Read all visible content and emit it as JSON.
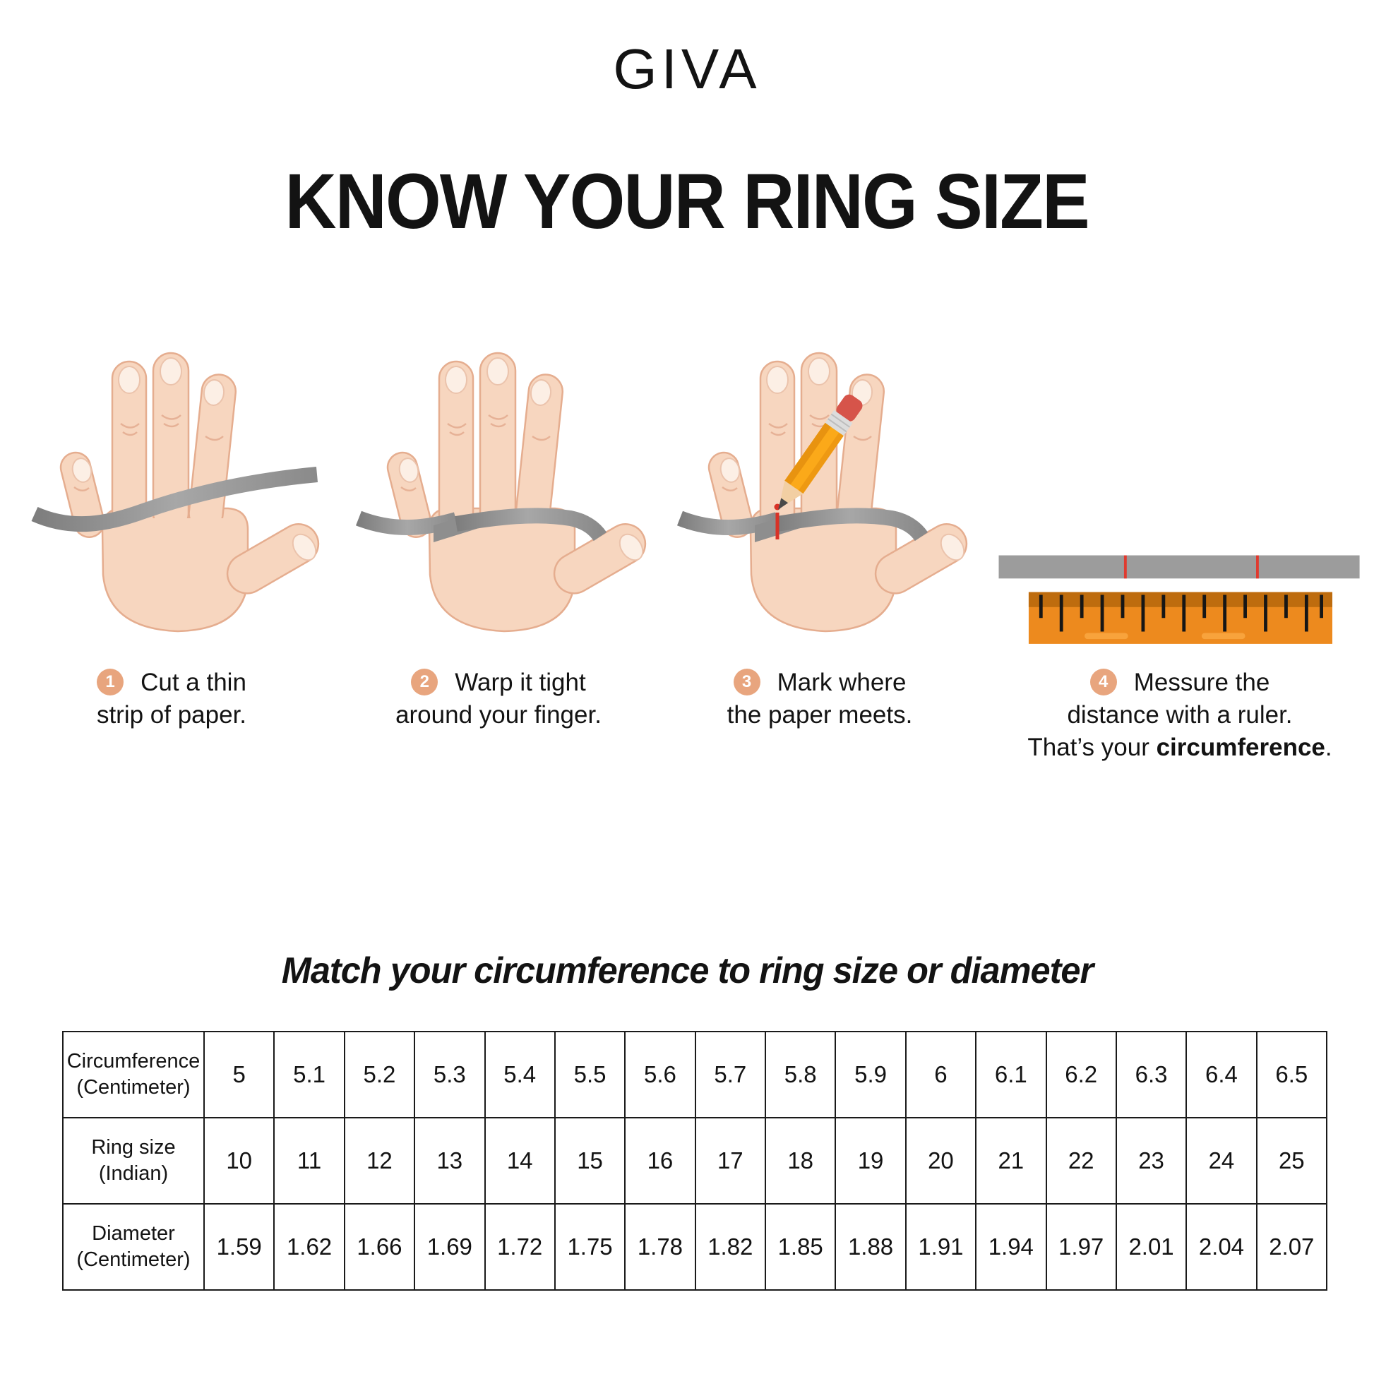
{
  "brand": {
    "logo_text": "GIVA"
  },
  "heading": {
    "title": "KNOW YOUR RING SIZE"
  },
  "steps": [
    {
      "number": "1",
      "line1": "Cut a thin",
      "line2": "strip of paper."
    },
    {
      "number": "2",
      "line1": "Warp it tight",
      "line2": "around your finger."
    },
    {
      "number": "3",
      "line1": "Mark where",
      "line2": "the paper meets."
    },
    {
      "number": "4",
      "line1": "Messure the",
      "line2": "distance with a ruler.",
      "line3_prefix": "That’s your ",
      "line3_bold": "circumference",
      "line3_suffix": "."
    }
  ],
  "figures": [
    {
      "icon": "hand-with-paper-strip-icon"
    },
    {
      "icon": "hand-strip-wrapped-icon"
    },
    {
      "icon": "hand-pencil-mark-icon"
    },
    {
      "icon": "ruler-measure-icon"
    }
  ],
  "colors": {
    "badge": "#E8A57E",
    "skin": "#F7D6BF",
    "skin_outline": "#E5AD8F",
    "strip_gray": "#909090",
    "mark_red": "#D93226",
    "ruler_orange": "#ED8A1E",
    "ruler_band": "#BE6C0E",
    "pencil_yellow": "#FBA919",
    "eraser_red": "#D6544A"
  },
  "match_section": {
    "title": "Match your circumference to ring size or diameter"
  },
  "table": {
    "rows": [
      {
        "label_line1": "Circumference",
        "label_line2": "(Centimeter)",
        "values": [
          "5",
          "5.1",
          "5.2",
          "5.3",
          "5.4",
          "5.5",
          "5.6",
          "5.7",
          "5.8",
          "5.9",
          "6",
          "6.1",
          "6.2",
          "6.3",
          "6.4",
          "6.5"
        ]
      },
      {
        "label_line1": "Ring size",
        "label_line2": "(Indian)",
        "values": [
          "10",
          "11",
          "12",
          "13",
          "14",
          "15",
          "16",
          "17",
          "18",
          "19",
          "20",
          "21",
          "22",
          "23",
          "24",
          "25"
        ]
      },
      {
        "label_line1": "Diameter",
        "label_line2": "(Centimeter)",
        "values": [
          "1.59",
          "1.62",
          "1.66",
          "1.69",
          "1.72",
          "1.75",
          "1.78",
          "1.82",
          "1.85",
          "1.88",
          "1.91",
          "1.94",
          "1.97",
          "2.01",
          "2.04",
          "2.07"
        ]
      }
    ]
  }
}
